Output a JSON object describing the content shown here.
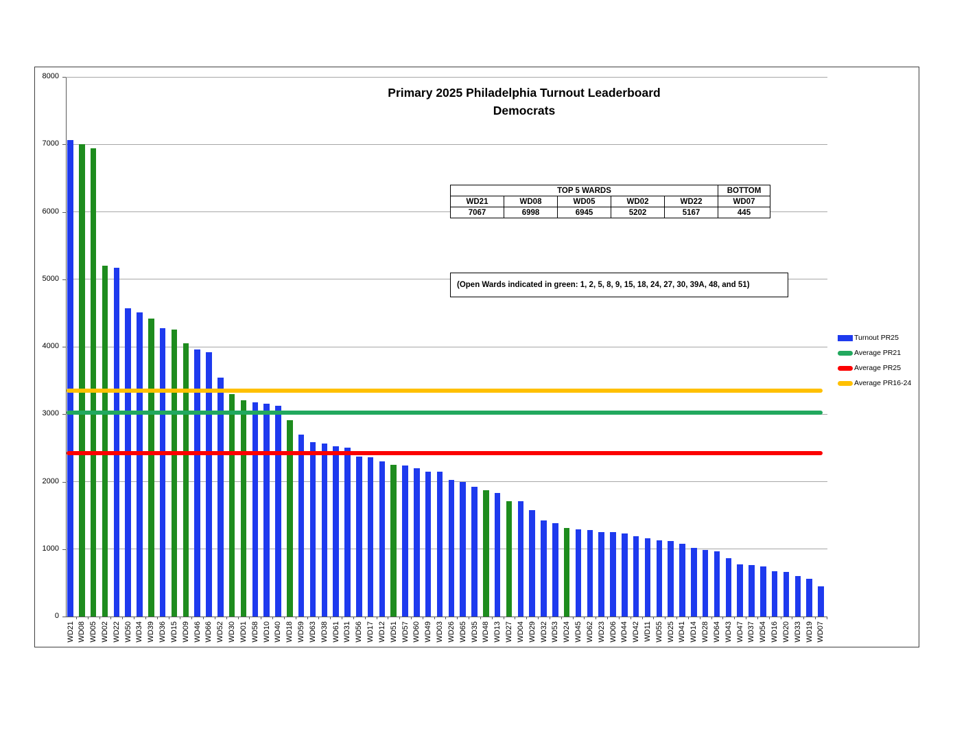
{
  "title": {
    "line1": "Primary 2025 Philadelphia Turnout Leaderboard",
    "line2": "Democrats"
  },
  "summary_table": {
    "top_header": "TOP 5 WARDS",
    "bottom_header": "BOTTOM",
    "columns": [
      "WD21",
      "WD08",
      "WD05",
      "WD02",
      "WD22",
      "WD07"
    ],
    "values": [
      "7067",
      "6998",
      "6945",
      "5202",
      "5167",
      "445"
    ]
  },
  "annotation": "(Open Wards indicated in green:  1, 2, 5, 8, 9, 15, 18, 24, 27, 30, 39A, 48, and 51)",
  "legend": [
    {
      "label": "Turnout PR25",
      "color": "#1e3aee",
      "shape": "rect"
    },
    {
      "label": "Average PR21",
      "color": "#22a85e",
      "shape": "line"
    },
    {
      "label": "Average PR25",
      "color": "#fc0000",
      "shape": "line"
    },
    {
      "label": "Average PR16-24",
      "color": "#ffc000",
      "shape": "line"
    }
  ],
  "chart_data": {
    "type": "bar",
    "title": "Primary 2025 Philadelphia Turnout Leaderboard",
    "subtitle": "Democrats",
    "xlabel": "",
    "ylabel": "",
    "ylim": [
      0,
      8000
    ],
    "yticks": [
      0,
      1000,
      2000,
      3000,
      4000,
      5000,
      6000,
      7000,
      8000
    ],
    "grid": true,
    "legend_position": "right",
    "series_name": "Turnout PR25",
    "categories": [
      "WD21",
      "WD08",
      "WD05",
      "WD02",
      "WD22",
      "WD50",
      "WD34",
      "WD39",
      "WD36",
      "WD15",
      "WD09",
      "WD46",
      "WD66",
      "WD52",
      "WD30",
      "WD01",
      "WD58",
      "WD10",
      "WD40",
      "WD18",
      "WD59",
      "WD63",
      "WD38",
      "WD61",
      "WD31",
      "WD56",
      "WD17",
      "WD12",
      "WD51",
      "WD57",
      "WD60",
      "WD49",
      "WD03",
      "WD26",
      "WD65",
      "WD35",
      "WD48",
      "WD13",
      "WD27",
      "WD04",
      "WD29",
      "WD32",
      "WD53",
      "WD24",
      "WD45",
      "WD62",
      "WD23",
      "WD06",
      "WD44",
      "WD42",
      "WD11",
      "WD55",
      "WD25",
      "WD41",
      "WD14",
      "WD28",
      "WD64",
      "WD43",
      "WD47",
      "WD37",
      "WD54",
      "WD16",
      "WD20",
      "WD33",
      "WD19",
      "WD07"
    ],
    "values": [
      7067,
      6998,
      6945,
      5202,
      5167,
      4570,
      4510,
      4420,
      4270,
      4250,
      4050,
      3960,
      3920,
      3540,
      3300,
      3210,
      3180,
      3160,
      3120,
      2910,
      2700,
      2590,
      2560,
      2520,
      2500,
      2370,
      2360,
      2300,
      2250,
      2240,
      2200,
      2150,
      2145,
      2030,
      1990,
      1925,
      1875,
      1835,
      1715,
      1710,
      1580,
      1430,
      1385,
      1310,
      1290,
      1285,
      1255,
      1250,
      1235,
      1190,
      1165,
      1125,
      1115,
      1080,
      1015,
      985,
      965,
      870,
      770,
      765,
      745,
      670,
      660,
      600,
      565,
      445
    ],
    "open_wards_green": [
      "WD01",
      "WD02",
      "WD05",
      "WD08",
      "WD09",
      "WD15",
      "WD18",
      "WD24",
      "WD27",
      "WD30",
      "WD39",
      "WD48",
      "WD51"
    ],
    "bar_colors": {
      "default": "#1e3aee",
      "open_ward": "#1e8c1e"
    },
    "reference_lines": [
      {
        "name": "Average PR16-24",
        "value": 3350,
        "color": "#ffc000"
      },
      {
        "name": "Average PR21",
        "value": 3020,
        "color": "#22a85e"
      },
      {
        "name": "Average PR25",
        "value": 2420,
        "color": "#fc0000"
      }
    ]
  }
}
